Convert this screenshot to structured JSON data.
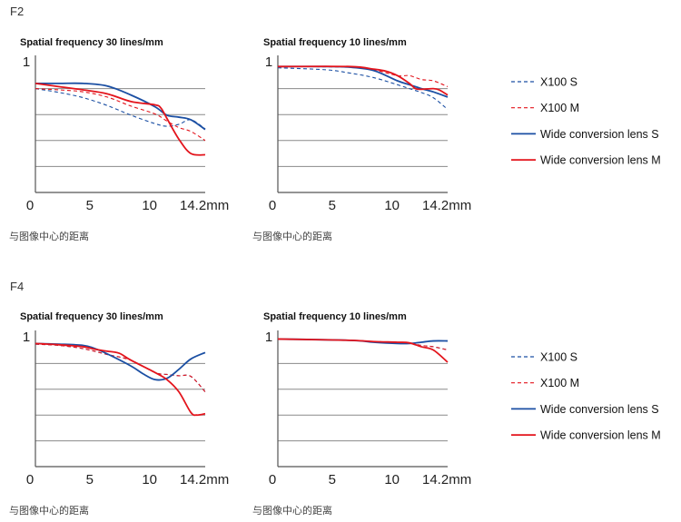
{
  "colors": {
    "blue": "#1b4fa3",
    "red": "#e3141c",
    "grid": "#8a8a8a",
    "axis": "#555555"
  },
  "legend": [
    {
      "label": "X100 S",
      "color": "#1b4fa3",
      "dashed": true
    },
    {
      "label": "X100 M",
      "color": "#e3141c",
      "dashed": true
    },
    {
      "label": "Wide conversion lens S",
      "color": "#1b4fa3",
      "dashed": false
    },
    {
      "label": "Wide conversion lens M",
      "color": "#e3141c",
      "dashed": false
    }
  ],
  "sections": [
    {
      "label": "F2"
    },
    {
      "label": "F4"
    }
  ],
  "chart_data": [
    {
      "type": "line",
      "section": "F2",
      "title": "Spatial frequency 30 lines/mm",
      "xlabel": "与图像中心的距离",
      "ylabel": "",
      "xlim": [
        0,
        14.2
      ],
      "ylim": [
        0,
        1
      ],
      "x_ticks": [
        "0",
        "5",
        "10",
        "14.2mm"
      ],
      "x_tick_values": [
        0,
        5,
        10,
        14.2
      ],
      "y_ticks": [
        "1"
      ],
      "grid": [
        0.2,
        0.4,
        0.6,
        0.8
      ],
      "series": [
        {
          "name": "X100 S",
          "x": [
            0,
            2,
            4,
            6,
            8,
            10,
            11,
            12,
            13,
            14.2
          ],
          "y": [
            0.8,
            0.77,
            0.73,
            0.67,
            0.595,
            0.53,
            0.51,
            0.525,
            0.56,
            0.49
          ]
        },
        {
          "name": "X100 M",
          "x": [
            0,
            2,
            4,
            6,
            8,
            10,
            11,
            12,
            13,
            14.2
          ],
          "y": [
            0.8,
            0.79,
            0.775,
            0.735,
            0.665,
            0.605,
            0.55,
            0.5,
            0.47,
            0.4
          ]
        },
        {
          "name": "Wide conversion lens S",
          "x": [
            0,
            2,
            4,
            6,
            8,
            10,
            11,
            12,
            13,
            14.2
          ],
          "y": [
            0.84,
            0.84,
            0.84,
            0.82,
            0.75,
            0.66,
            0.595,
            0.58,
            0.56,
            0.485
          ]
        },
        {
          "name": "Wide conversion lens M",
          "x": [
            0,
            2,
            4,
            6,
            8,
            10,
            10.5,
            11,
            12,
            13,
            14.2
          ],
          "y": [
            0.84,
            0.815,
            0.79,
            0.76,
            0.7,
            0.675,
            0.65,
            0.57,
            0.41,
            0.3,
            0.29
          ]
        }
      ]
    },
    {
      "type": "line",
      "section": "F2",
      "title": "Spatial frequency 10 lines/mm",
      "xlabel": "与图像中心的距离",
      "ylabel": "",
      "xlim": [
        0,
        14.2
      ],
      "ylim": [
        0,
        1
      ],
      "x_ticks": [
        "0",
        "5",
        "10",
        "14.2mm"
      ],
      "x_tick_values": [
        0,
        5,
        10,
        14.2
      ],
      "y_ticks": [
        "1"
      ],
      "grid": [
        0.2,
        0.4,
        0.6,
        0.8
      ],
      "series": [
        {
          "name": "X100 S",
          "x": [
            0,
            4,
            6,
            8,
            10,
            11,
            12,
            13,
            14.2
          ],
          "y": [
            0.96,
            0.945,
            0.92,
            0.885,
            0.83,
            0.8,
            0.77,
            0.73,
            0.64
          ]
        },
        {
          "name": "X100 M",
          "x": [
            0,
            6,
            8,
            10,
            11,
            12,
            13,
            14.2
          ],
          "y": [
            0.97,
            0.965,
            0.945,
            0.9,
            0.9,
            0.87,
            0.86,
            0.815
          ]
        },
        {
          "name": "Wide conversion lens S",
          "x": [
            0,
            4,
            6,
            8,
            10,
            11,
            12,
            13,
            14.2
          ],
          "y": [
            0.97,
            0.97,
            0.965,
            0.94,
            0.86,
            0.83,
            0.8,
            0.775,
            0.735
          ]
        },
        {
          "name": "Wide conversion lens M",
          "x": [
            0,
            6,
            8,
            9,
            10,
            11,
            11.5,
            12,
            13,
            13.5,
            14.2
          ],
          "y": [
            0.97,
            0.97,
            0.95,
            0.935,
            0.9,
            0.84,
            0.8,
            0.795,
            0.8,
            0.79,
            0.75
          ]
        }
      ]
    },
    {
      "type": "line",
      "section": "F4",
      "title": "Spatial frequency 30 lines/mm",
      "xlabel": "与图像中心的距离",
      "ylabel": "",
      "xlim": [
        0,
        14.2
      ],
      "ylim": [
        0,
        1
      ],
      "x_ticks": [
        "0",
        "5",
        "10",
        "14.2mm"
      ],
      "x_tick_values": [
        0,
        5,
        10,
        14.2
      ],
      "y_ticks": [
        "1"
      ],
      "grid": [
        0.2,
        0.4,
        0.6,
        0.8
      ],
      "series": [
        {
          "name": "X100 S",
          "x": [
            0,
            2,
            4,
            6,
            8,
            10,
            11,
            12,
            13,
            14.2
          ],
          "y": [
            0.95,
            0.94,
            0.915,
            0.87,
            0.825,
            0.73,
            0.715,
            0.705,
            0.7,
            0.58
          ]
        },
        {
          "name": "X100 M",
          "x": [
            0,
            2,
            4,
            6,
            8,
            10,
            11,
            12,
            13,
            14.2
          ],
          "y": [
            0.95,
            0.94,
            0.915,
            0.87,
            0.825,
            0.73,
            0.715,
            0.705,
            0.7,
            0.58
          ]
        },
        {
          "name": "Wide conversion lens S",
          "x": [
            0,
            2,
            4,
            5,
            6,
            8,
            9,
            10,
            11,
            12,
            13,
            14.2
          ],
          "y": [
            0.955,
            0.95,
            0.94,
            0.915,
            0.875,
            0.78,
            0.72,
            0.675,
            0.685,
            0.755,
            0.835,
            0.885
          ]
        },
        {
          "name": "Wide conversion lens M",
          "x": [
            0,
            2,
            4,
            5,
            6,
            7,
            8,
            10,
            11,
            12,
            13,
            13.5,
            14.2
          ],
          "y": [
            0.955,
            0.945,
            0.93,
            0.91,
            0.895,
            0.88,
            0.825,
            0.73,
            0.675,
            0.58,
            0.42,
            0.4,
            0.41
          ]
        }
      ]
    },
    {
      "type": "line",
      "section": "F4",
      "title": "Spatial frequency 10 lines/mm",
      "xlabel": "与图像中心的距离",
      "ylabel": "",
      "xlim": [
        0,
        14.2
      ],
      "ylim": [
        0,
        1
      ],
      "x_ticks": [
        "0",
        "5",
        "10",
        "14.2mm"
      ],
      "x_tick_values": [
        0,
        5,
        10,
        14.2
      ],
      "y_ticks": [
        "1"
      ],
      "grid": [
        0.2,
        0.4,
        0.6,
        0.8
      ],
      "series": [
        {
          "name": "X100 S",
          "x": [
            0,
            6,
            8,
            10,
            11,
            12,
            13,
            14.2
          ],
          "y": [
            0.99,
            0.98,
            0.97,
            0.965,
            0.96,
            0.94,
            0.93,
            0.905
          ]
        },
        {
          "name": "X100 M",
          "x": [
            0,
            6,
            8,
            10,
            11,
            12,
            13,
            14.2
          ],
          "y": [
            0.99,
            0.98,
            0.97,
            0.965,
            0.96,
            0.94,
            0.93,
            0.905
          ]
        },
        {
          "name": "Wide conversion lens S",
          "x": [
            0,
            6,
            8,
            10,
            11,
            12,
            13,
            14.2
          ],
          "y": [
            0.99,
            0.98,
            0.965,
            0.955,
            0.955,
            0.965,
            0.975,
            0.975
          ]
        },
        {
          "name": "Wide conversion lens M",
          "x": [
            0,
            6,
            8,
            10,
            11,
            12,
            13,
            14.2
          ],
          "y": [
            0.99,
            0.98,
            0.97,
            0.965,
            0.96,
            0.93,
            0.905,
            0.81
          ]
        }
      ]
    }
  ]
}
